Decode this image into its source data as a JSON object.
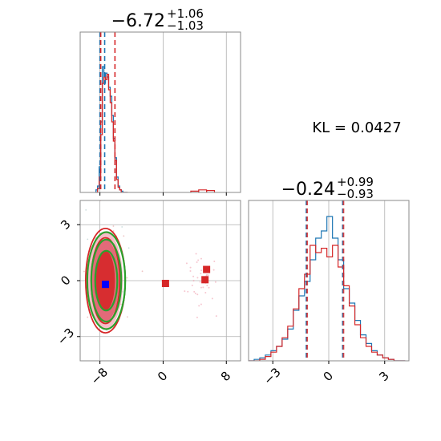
{
  "chart_data": {
    "type": "corner",
    "kl_text": "KL = 0.0427",
    "parameters": [
      {
        "title": {
          "median": "−6.72",
          "plus": "+1.06",
          "minus": "−1.03"
        },
        "range": [
          -10.5,
          9.8
        ],
        "ticks": [
          {
            "value": -8,
            "label": "−8"
          },
          {
            "value": 0,
            "label": "0"
          },
          {
            "value": 8,
            "label": "8"
          }
        ],
        "quantiles_blue": [
          -8.0,
          -7.4
        ],
        "quantiles_red": [
          -8.0,
          -6.2
        ],
        "hist_bins": [
          -8.5,
          -8.3,
          -8.1,
          -7.9,
          -7.7,
          -7.5,
          -7.3,
          -7.1,
          -6.9,
          -6.7,
          -6.5,
          -6.3,
          -6.1,
          -5.9,
          -5.7,
          -5.5,
          -5.3,
          -5.1,
          -4.9,
          -4.7,
          -4.5
        ],
        "hist_blue": [
          0.02,
          0.05,
          0.2,
          0.55,
          0.98,
          0.85,
          0.93,
          0.9,
          0.82,
          0.75,
          0.6,
          0.42,
          0.27,
          0.12,
          0.05,
          0.02,
          0.01,
          0.0,
          0.0,
          0.0
        ],
        "hist_red": [
          0.0,
          0.03,
          0.12,
          0.45,
          0.85,
          0.9,
          0.88,
          0.92,
          0.8,
          0.7,
          0.55,
          0.4,
          0.25,
          0.1,
          0.04,
          0.02,
          0.0,
          0.0,
          0.0,
          0.0
        ],
        "hist_red_tail": [
          {
            "x0": 3.5,
            "x1": 4.5,
            "h": 0.01
          },
          {
            "x0": 4.5,
            "x1": 5.5,
            "h": 0.02
          },
          {
            "x0": 5.5,
            "x1": 6.5,
            "h": 0.015
          }
        ]
      },
      {
        "title": {
          "median": "−0.24",
          "plus": "+0.99",
          "minus": "−0.93"
        },
        "range": [
          -4.3,
          4.3
        ],
        "ticks": [
          {
            "value": -3,
            "label": "−3"
          },
          {
            "value": 0,
            "label": "0"
          },
          {
            "value": 3,
            "label": "3"
          }
        ],
        "quantiles_blue": [
          -1.2,
          0.75
        ],
        "quantiles_red": [
          -1.2,
          0.75
        ],
        "hist_bins": [
          -4.3,
          -4.0,
          -3.7,
          -3.4,
          -3.1,
          -2.8,
          -2.5,
          -2.2,
          -1.9,
          -1.6,
          -1.3,
          -1.0,
          -0.7,
          -0.4,
          -0.1,
          0.2,
          0.5,
          0.8,
          1.1,
          1.4,
          1.7,
          2.0,
          2.3,
          2.6,
          2.9,
          3.2,
          3.5,
          3.8,
          4.1
        ],
        "hist_blue": [
          0.0,
          0.01,
          0.02,
          0.04,
          0.07,
          0.1,
          0.15,
          0.22,
          0.35,
          0.45,
          0.55,
          0.7,
          0.85,
          0.9,
          1.0,
          0.85,
          0.7,
          0.5,
          0.4,
          0.28,
          0.18,
          0.12,
          0.07,
          0.04,
          0.02,
          0.01,
          0.0,
          0.0
        ],
        "hist_red": [
          0.0,
          0.0,
          0.01,
          0.03,
          0.06,
          0.1,
          0.16,
          0.24,
          0.36,
          0.5,
          0.6,
          0.8,
          0.75,
          0.78,
          0.72,
          0.8,
          0.65,
          0.52,
          0.38,
          0.25,
          0.16,
          0.1,
          0.06,
          0.04,
          0.02,
          0.01,
          0.0,
          0.0
        ]
      }
    ],
    "joint": {
      "x_range": [
        -10.5,
        9.8
      ],
      "y_range": [
        -4.3,
        4.3
      ],
      "xticks": [
        {
          "value": -8,
          "label": "−8"
        },
        {
          "value": 0,
          "label": "0"
        },
        {
          "value": 8,
          "label": "8"
        }
      ],
      "yticks": [
        {
          "value": 3,
          "label": "3"
        },
        {
          "value": 0,
          "label": "0"
        },
        {
          "value": -3,
          "label": "−3"
        }
      ],
      "contours_filled": [
        {
          "cx": -7.3,
          "cy": 0.0,
          "rx": 2.2,
          "ry": 2.6,
          "color": "#f4b6c2"
        },
        {
          "cx": -7.3,
          "cy": 0.0,
          "rx": 1.7,
          "ry": 2.2,
          "color": "#e06070"
        },
        {
          "cx": -7.3,
          "cy": 0.0,
          "rx": 1.2,
          "ry": 1.6,
          "color": "#d62728"
        }
      ],
      "contours_red_lines": [
        {
          "cx": -7.3,
          "cy": 0.0,
          "rx": 2.5,
          "ry": 2.8
        },
        {
          "cx": -7.3,
          "cy": 0.0,
          "rx": 1.8,
          "ry": 2.3
        }
      ],
      "contours_green_lines": [
        {
          "cx": -7.2,
          "cy": 0.0,
          "rx": 2.4,
          "ry": 2.6
        },
        {
          "cx": -7.2,
          "cy": 0.0,
          "rx": 1.9,
          "ry": 2.2
        },
        {
          "cx": -7.2,
          "cy": 0.0,
          "rx": 1.4,
          "ry": 1.6
        }
      ],
      "blue_marker": {
        "x": -7.3,
        "y": -0.2,
        "color": "#0000ff"
      },
      "red_markers": [
        {
          "x": 0.3,
          "y": -0.15
        },
        {
          "x": 5.5,
          "y": 0.6
        },
        {
          "x": 5.3,
          "y": 0.05
        }
      ],
      "scatter_cluster": {
        "cx": 5.0,
        "cy": 0.0,
        "sx": 1.0,
        "sy": 0.8,
        "n": 40
      }
    },
    "colors": {
      "blue": "#1f77b4",
      "red": "#d62728",
      "green": "#2ca02c",
      "grid": "#b0b0b0"
    }
  }
}
